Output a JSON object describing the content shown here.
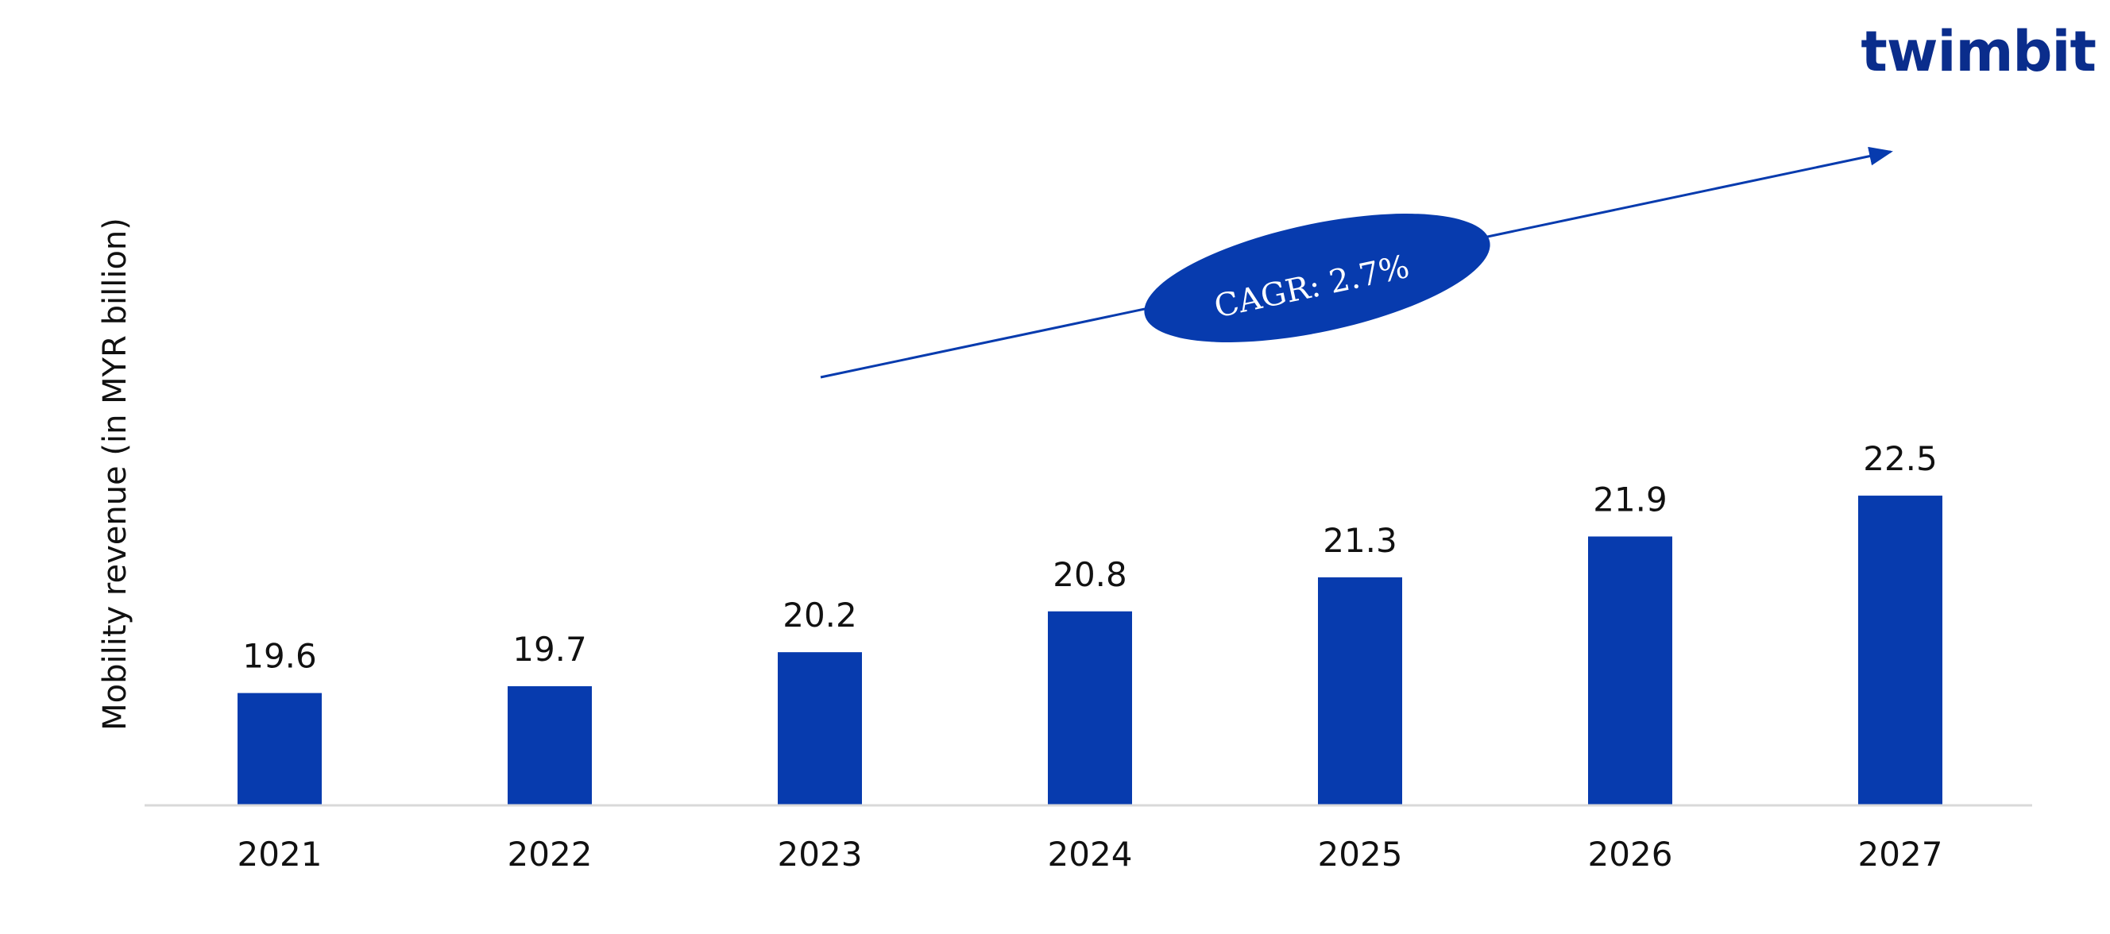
{
  "logo": {
    "text": "twimbit",
    "color": "#0A2D8C",
    "dot_color": "#E8344A"
  },
  "annotation": {
    "label": "CAGR: 2.7%",
    "color": "#073BAE"
  },
  "chart_data": {
    "type": "bar",
    "categories": [
      "2021",
      "2022",
      "2023",
      "2024",
      "2025",
      "2026",
      "2027"
    ],
    "values": [
      19.6,
      19.7,
      20.2,
      20.8,
      21.3,
      21.9,
      22.5
    ],
    "data_labels": [
      "19.6",
      "19.7",
      "20.2",
      "20.8",
      "21.3",
      "21.9",
      "22.5"
    ],
    "title": "",
    "xlabel": "",
    "ylabel": "Mobility revenue (in MYR billion)",
    "bar_color": "#073BAE",
    "axis_color": "#D9D9D9",
    "grid": false,
    "legend": "none"
  }
}
